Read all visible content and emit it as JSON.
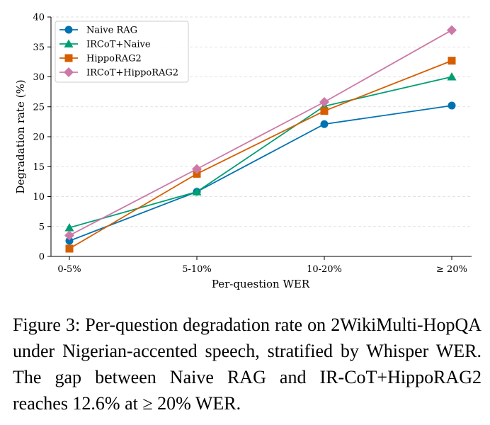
{
  "chart_data": {
    "type": "line",
    "categories": [
      "0-5%",
      "5-10%",
      "10-20%",
      "≥ 20%"
    ],
    "xlabel": "Per-question WER",
    "ylabel": "Degradation rate (%)",
    "ylim": [
      0,
      40
    ],
    "yticks": [
      0,
      5,
      10,
      15,
      20,
      25,
      30,
      35,
      40
    ],
    "grid": "horizontal dashed",
    "legend_position": "top-left",
    "series": [
      {
        "name": "Naive RAG",
        "values": [
          2.6,
          10.8,
          22.1,
          25.2
        ],
        "color": "#0072b2",
        "marker": "circle"
      },
      {
        "name": "IRCoT+Naive",
        "values": [
          4.8,
          10.8,
          25.1,
          30.0
        ],
        "color": "#009e73",
        "marker": "triangle"
      },
      {
        "name": "HippoRAG2",
        "values": [
          1.3,
          13.8,
          24.3,
          32.7
        ],
        "color": "#d55e00",
        "marker": "square"
      },
      {
        "name": "IRCoT+HippoRAG2",
        "values": [
          3.5,
          14.6,
          25.8,
          37.8
        ],
        "color": "#cc79a7",
        "marker": "diamond"
      }
    ]
  },
  "caption": "Figure 3: Per-question degradation rate on 2WikiMulti-HopQA under Nigerian-accented speech, stratified by Whisper WER. The gap between Naive RAG and IR-CoT+HippoRAG2 reaches 12.6% at ≥ 20% WER."
}
